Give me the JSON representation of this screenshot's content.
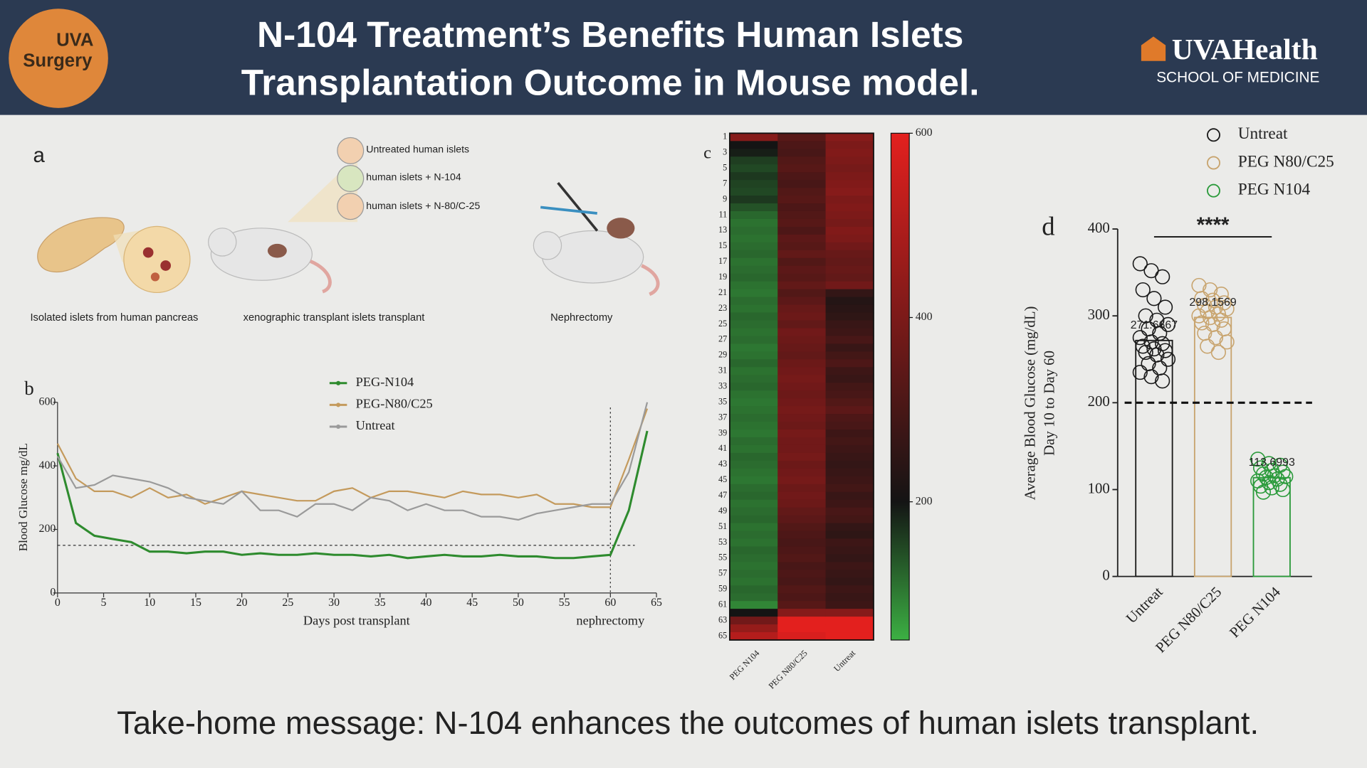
{
  "header": {
    "logo_text": [
      "UVA",
      "Surgery"
    ],
    "title": [
      "N-104 Treatment’s Benefits Human Islets",
      "Transplantation Outcome in Mouse model."
    ],
    "brand": "UVAHealth",
    "brand_sub": "SCHOOL OF MEDICINE"
  },
  "panel_a": {
    "label": "a",
    "islet_labels": [
      "Untreated human islets",
      "human islets + N-104",
      "human islets + N-80/C-25"
    ],
    "steps": [
      "Isolated islets from human pancreas",
      "xenographic transplant islets transplant",
      "Nephrectomy"
    ]
  },
  "chart_data": [
    {
      "type": "line",
      "label": "b",
      "xlabel": "Days post transplant",
      "ylabel": "Blood Glucose mg/dL",
      "annotation": "nephrectomy",
      "x": [
        0,
        2,
        4,
        6,
        8,
        10,
        12,
        14,
        16,
        18,
        20,
        22,
        24,
        26,
        28,
        30,
        32,
        34,
        36,
        38,
        40,
        42,
        44,
        46,
        48,
        50,
        52,
        54,
        56,
        58,
        60,
        62,
        64
      ],
      "series": [
        {
          "name": "PEG-N104",
          "color": "#2e8b2e",
          "values": [
            440,
            220,
            180,
            170,
            160,
            130,
            130,
            125,
            130,
            130,
            120,
            125,
            120,
            120,
            125,
            120,
            120,
            115,
            120,
            110,
            115,
            120,
            115,
            115,
            120,
            115,
            115,
            110,
            110,
            115,
            120,
            260,
            510
          ]
        },
        {
          "name": "PEG-N80/C25",
          "color": "#c49a5c",
          "values": [
            470,
            360,
            320,
            320,
            300,
            330,
            300,
            310,
            280,
            300,
            320,
            310,
            300,
            290,
            290,
            320,
            330,
            300,
            320,
            320,
            310,
            300,
            320,
            310,
            310,
            300,
            310,
            280,
            280,
            270,
            270,
            420,
            580
          ]
        },
        {
          "name": "Untreat",
          "color": "#9a9a9a",
          "values": [
            430,
            330,
            340,
            370,
            360,
            350,
            330,
            300,
            290,
            280,
            320,
            260,
            260,
            240,
            280,
            280,
            260,
            300,
            290,
            260,
            280,
            260,
            260,
            240,
            240,
            230,
            250,
            260,
            270,
            280,
            280,
            380,
            600
          ]
        }
      ],
      "xlim": [
        0,
        65
      ],
      "xticks": [
        0,
        5,
        10,
        15,
        20,
        25,
        30,
        35,
        40,
        45,
        50,
        55,
        60,
        65
      ],
      "ylim": [
        0,
        600
      ],
      "yticks": [
        0,
        200,
        400,
        600
      ],
      "threshold": 150,
      "event_x": 60,
      "legend": "top"
    },
    {
      "type": "heatmap",
      "label": "c",
      "rows": [
        1,
        null,
        3,
        null,
        5,
        null,
        7,
        null,
        9,
        null,
        11,
        null,
        13,
        null,
        15,
        null,
        17,
        null,
        19,
        null,
        21,
        null,
        23,
        null,
        25,
        null,
        27,
        null,
        29,
        null,
        31,
        null,
        33,
        null,
        35,
        null,
        37,
        null,
        39,
        null,
        41,
        null,
        43,
        null,
        45,
        null,
        47,
        null,
        49,
        null,
        51,
        null,
        53,
        null,
        55,
        null,
        57,
        null,
        59,
        null,
        61,
        null,
        63,
        null,
        65
      ],
      "columns": [
        "PEG N104",
        "PEG N80/C25",
        "Untreat"
      ],
      "values": [
        [
          420,
          200,
          190,
          160,
          150,
          165,
          155,
          150,
          165,
          140,
          120,
          110,
          115,
          110,
          115,
          120,
          110,
          115,
          120,
          110,
          105,
          115,
          110,
          120,
          115,
          110,
          115,
          105,
          110,
          120,
          110,
          115,
          120,
          110,
          105,
          110,
          115,
          110,
          105,
          115,
          110,
          120,
          115,
          110,
          105,
          115,
          120,
          110,
          115,
          120,
          110,
          115,
          110,
          120,
          115,
          110,
          115,
          110,
          120,
          115,
          90,
          200,
          380,
          450,
          510
        ],
        [
          330,
          310,
          300,
          320,
          330,
          310,
          300,
          320,
          330,
          310,
          320,
          330,
          310,
          340,
          330,
          350,
          320,
          340,
          330,
          350,
          320,
          340,
          360,
          370,
          350,
          380,
          370,
          360,
          350,
          370,
          380,
          390,
          380,
          370,
          380,
          390,
          380,
          370,
          390,
          380,
          380,
          390,
          370,
          380,
          390,
          370,
          380,
          370,
          350,
          340,
          320,
          310,
          300,
          310,
          320,
          300,
          310,
          300,
          320,
          310,
          330,
          420,
          600,
          600,
          580
        ],
        [
          420,
          400,
          410,
          400,
          390,
          400,
          410,
          420,
          400,
          410,
          400,
          390,
          410,
          400,
          380,
          360,
          350,
          360,
          350,
          380,
          260,
          230,
          240,
          250,
          270,
          280,
          300,
          270,
          290,
          310,
          280,
          270,
          290,
          300,
          320,
          340,
          310,
          300,
          280,
          290,
          280,
          270,
          260,
          270,
          280,
          290,
          270,
          280,
          300,
          290,
          260,
          250,
          280,
          270,
          260,
          280,
          270,
          260,
          280,
          270,
          280,
          420,
          600,
          600,
          600
        ]
      ],
      "color_stops": [
        50,
        200,
        600
      ],
      "colors": [
        "#3cb043",
        "#141414",
        "#e3201e"
      ],
      "cticks": [
        200,
        400,
        600
      ]
    },
    {
      "type": "bar_scatter",
      "label": "d",
      "ylabel": [
        "Average Blood Glucose (mg/dL)",
        "Day 10 to Day 60"
      ],
      "categories": [
        "Untreat",
        "PEG N80/C25",
        "PEG N104"
      ],
      "values": [
        271.6667,
        298.1569,
        113.6993
      ],
      "colors": [
        "#1a1a1a",
        "#c8a46e",
        "#2a9a3a"
      ],
      "points": [
        [
          360,
          352,
          345,
          330,
          320,
          310,
          300,
          295,
          290,
          285,
          280,
          275,
          270,
          268,
          265,
          262,
          260,
          258,
          255,
          250,
          245,
          240,
          235,
          230,
          225
        ],
        [
          335,
          330,
          325,
          320,
          318,
          315,
          312,
          310,
          308,
          305,
          302,
          300,
          298,
          295,
          292,
          290,
          285,
          280,
          275,
          270,
          265,
          258
        ],
        [
          135,
          130,
          128,
          125,
          122,
          120,
          118,
          116,
          115,
          114,
          112,
          110,
          108,
          106,
          104,
          102,
          100,
          97
        ]
      ],
      "ylim": [
        0,
        400
      ],
      "yticks": [
        0,
        100,
        200,
        300,
        400
      ],
      "threshold": 200,
      "significance": "****",
      "legend": "top-right"
    }
  ],
  "footer": "Take-home message: N-104 enhances the outcomes of human islets transplant."
}
